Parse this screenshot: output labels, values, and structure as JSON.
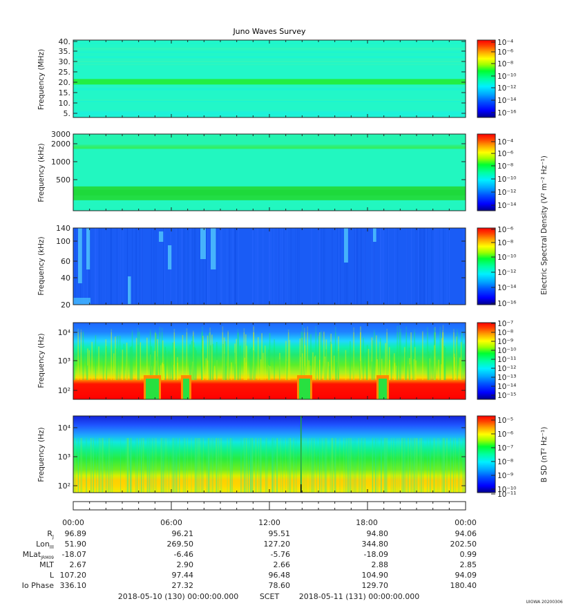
{
  "title": "Juno Waves Survey",
  "watermark": "UIOWA 20200306",
  "colormap": [
    "#00008b",
    "#0000ff",
    "#0050ff",
    "#00a8ff",
    "#00f0ff",
    "#00ffb0",
    "#00ff40",
    "#7cff00",
    "#ffff00",
    "#ffb000",
    "#ff5000",
    "#ff0000"
  ],
  "colorbar_labels": {
    "electric": "Electric Spectral Density (V² m⁻² Hz⁻¹)",
    "magnetic": "B SD (nT² Hz⁻¹)"
  },
  "chart_data": [
    {
      "type": "heatmap",
      "panel": "HFR high",
      "ylabel": "Frequency (MHz)",
      "yticks": [
        "40.",
        "35.",
        "30.",
        "25.",
        "20.",
        "15.",
        "10.",
        "5."
      ],
      "ylim": [
        3.5,
        41
      ],
      "background": "#22f7c8",
      "bands": [
        {
          "at": 20.8,
          "color": "#22ee44"
        }
      ],
      "colorbar": {
        "min_exp": -16,
        "max_exp": -4,
        "ticks": [
          "10⁻⁴",
          "10⁻⁶",
          "10⁻⁸",
          "10⁻¹⁰",
          "10⁻¹²",
          "10⁻¹⁴",
          "10⁻¹⁶"
        ]
      }
    },
    {
      "type": "heatmap",
      "panel": "HFR low",
      "ylabel": "Frequency (kHz)",
      "yticks": [
        "3000",
        "2000",
        "1000",
        "500"
      ],
      "yscale": "log",
      "ylim": [
        100,
        3000
      ],
      "background": "#22f7c0",
      "bands": [
        {
          "at": 1700,
          "color": "#33ee66"
        },
        {
          "at": 200,
          "color": "#22dd44"
        }
      ],
      "colorbar": {
        "min_exp": -15,
        "max_exp": -3,
        "ticks": [
          "10⁻⁴",
          "10⁻⁶",
          "10⁻⁸",
          "10⁻¹⁰",
          "10⁻¹²",
          "10⁻¹⁴"
        ]
      }
    },
    {
      "type": "heatmap",
      "panel": "LFR high",
      "ylabel": "Frequency (kHz)",
      "yticks": [
        "140",
        "100",
        "60",
        "40",
        "20"
      ],
      "ylim": [
        20,
        140
      ],
      "background": "#1a5cf5",
      "colorbar": {
        "min_exp": -16,
        "max_exp": -6,
        "ticks": [
          "10⁻⁶",
          "10⁻⁸",
          "10⁻¹⁰",
          "10⁻¹²",
          "10⁻¹⁴",
          "10⁻¹⁶"
        ]
      }
    },
    {
      "type": "heatmap",
      "panel": "E LFR low",
      "ylabel": "Frequency (Hz)",
      "yticks": [
        "10⁴",
        "10³",
        "10²"
      ],
      "yscale": "log",
      "colorbar": {
        "min_exp": -15,
        "max_exp": -7,
        "ticks": [
          "10⁻⁷",
          "10⁻⁸",
          "10⁻⁹",
          "10⁻¹⁰",
          "10⁻¹¹",
          "10⁻¹²",
          "10⁻¹³",
          "10⁻¹⁴",
          "10⁻¹⁵"
        ]
      }
    },
    {
      "type": "heatmap",
      "panel": "B LFR low",
      "ylabel": "Frequency (Hz)",
      "yticks": [
        "10⁴",
        "10³",
        "10²"
      ],
      "yscale": "log",
      "colorbar": {
        "min_exp": -11,
        "max_exp": -4.5,
        "ticks": [
          "10⁻⁵",
          "10⁻⁶",
          "10⁻⁷",
          "10⁻⁸",
          "10⁻⁹",
          "10⁻¹⁰",
          "10⁻¹¹"
        ]
      }
    }
  ],
  "x_axis": {
    "ticks": [
      "00:00",
      "06:00",
      "12:00",
      "18:00",
      "00:00"
    ]
  },
  "ephemeris": [
    {
      "label": "Rj",
      "values": [
        "96.89",
        "96.21",
        "95.51",
        "94.80",
        "94.06"
      ]
    },
    {
      "label": "LonIII",
      "values": [
        "51.90",
        "269.50",
        "127.20",
        "344.80",
        "202.50"
      ]
    },
    {
      "label": "MLatJRM09",
      "values": [
        "-18.07",
        "-6.46",
        "-5.76",
        "-18.09",
        "0.99"
      ]
    },
    {
      "label": "MLT",
      "values": [
        "2.67",
        "2.90",
        "2.66",
        "2.88",
        "2.85"
      ]
    },
    {
      "label": "L",
      "values": [
        "107.20",
        "97.44",
        "96.48",
        "104.90",
        "94.09"
      ]
    },
    {
      "label": "Io Phase",
      "values": [
        "336.10",
        "27.32",
        "78.60",
        "129.70",
        "180.40"
      ]
    }
  ],
  "footer": {
    "start": "2018-05-10 (130) 00:00:00.000",
    "scet": "SCET",
    "end": "2018-05-11 (131) 00:00:00.000"
  }
}
